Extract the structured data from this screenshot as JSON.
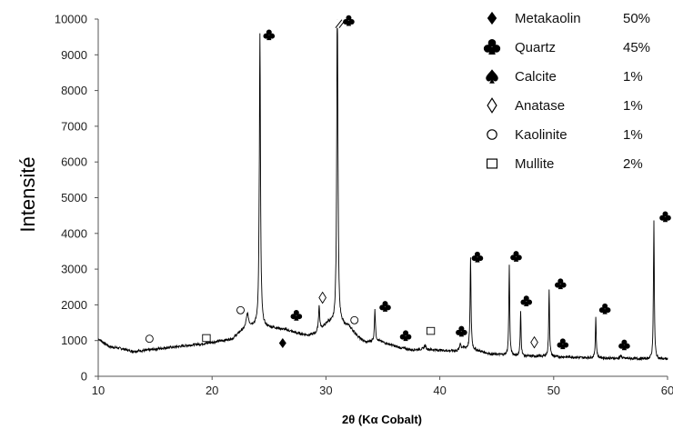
{
  "chart_data": {
    "type": "line",
    "title": "",
    "xlabel": "2θ (Kα Cobalt)",
    "ylabel": "Intensité",
    "xlim": [
      10,
      60
    ],
    "ylim": [
      0,
      10000
    ],
    "xticks": [
      "10",
      "20",
      "30",
      "40",
      "50",
      "60"
    ],
    "yticks": [
      "0",
      "1000",
      "2000",
      "3000",
      "4000",
      "5000",
      "6000",
      "7000",
      "8000",
      "9000",
      "10000"
    ],
    "grid": false,
    "legend_position": "top-right",
    "axis_break": {
      "x": 31,
      "y": 9880
    },
    "baseline": [
      [
        10,
        1050
      ],
      [
        11,
        830
      ],
      [
        12,
        780
      ],
      [
        13,
        700
      ],
      [
        14,
        720
      ],
      [
        15,
        760
      ],
      [
        16,
        800
      ],
      [
        17,
        830
      ],
      [
        18,
        870
      ],
      [
        19,
        900
      ],
      [
        20,
        950
      ],
      [
        21,
        1000
      ],
      [
        21.8,
        1050
      ],
      [
        22.5,
        1250
      ],
      [
        23.5,
        1400
      ],
      [
        25.5,
        1350
      ],
      [
        26.5,
        1300
      ],
      [
        27.5,
        1200
      ],
      [
        28.5,
        1150
      ],
      [
        29,
        1180
      ],
      [
        29.5,
        1300
      ],
      [
        30.2,
        1500
      ],
      [
        32,
        1400
      ],
      [
        33,
        1050
      ],
      [
        33.5,
        950
      ],
      [
        34.5,
        1000
      ],
      [
        35.5,
        900
      ],
      [
        36.5,
        800
      ],
      [
        37.5,
        740
      ],
      [
        38.5,
        760
      ],
      [
        39.5,
        740
      ],
      [
        40.5,
        720
      ],
      [
        41.5,
        710
      ],
      [
        42,
        800
      ],
      [
        43.5,
        700
      ],
      [
        44.5,
        620
      ],
      [
        45.5,
        600
      ],
      [
        46.5,
        580
      ],
      [
        47.5,
        560
      ],
      [
        48.5,
        560
      ],
      [
        49.5,
        560
      ],
      [
        50.5,
        540
      ],
      [
        51.5,
        540
      ],
      [
        52.5,
        520
      ],
      [
        53.5,
        520
      ],
      [
        54.5,
        510
      ],
      [
        55.5,
        500
      ],
      [
        56.5,
        500
      ],
      [
        57.5,
        490
      ],
      [
        58.5,
        480
      ],
      [
        59.5,
        480
      ],
      [
        60,
        480
      ]
    ],
    "peaks": [
      {
        "x": 23.1,
        "height": 400,
        "width": 0.25
      },
      {
        "x": 24.2,
        "height": 8200,
        "width": 0.12
      },
      {
        "x": 29.4,
        "height": 700,
        "width": 0.12
      },
      {
        "x": 31.0,
        "height": 9500,
        "width": 0.12
      },
      {
        "x": 34.3,
        "height": 900,
        "width": 0.1
      },
      {
        "x": 38.7,
        "height": 120,
        "width": 0.15
      },
      {
        "x": 41.8,
        "height": 180,
        "width": 0.1
      },
      {
        "x": 42.7,
        "height": 2550,
        "width": 0.1
      },
      {
        "x": 46.1,
        "height": 2550,
        "width": 0.09
      },
      {
        "x": 47.1,
        "height": 1250,
        "width": 0.09
      },
      {
        "x": 49.6,
        "height": 1900,
        "width": 0.09
      },
      {
        "x": 53.7,
        "height": 1150,
        "width": 0.09
      },
      {
        "x": 55.9,
        "height": 80,
        "width": 0.15
      },
      {
        "x": 58.8,
        "height": 3850,
        "width": 0.09
      }
    ],
    "markers": [
      {
        "phase": "quartz",
        "x": 25.0,
        "y": 9550
      },
      {
        "phase": "quartz",
        "x": 32.0,
        "y": 9950
      },
      {
        "phase": "quartz",
        "x": 27.4,
        "y": 1700
      },
      {
        "phase": "quartz",
        "x": 35.2,
        "y": 1950
      },
      {
        "phase": "quartz",
        "x": 37.0,
        "y": 1130
      },
      {
        "phase": "quartz",
        "x": 41.9,
        "y": 1250
      },
      {
        "phase": "quartz",
        "x": 43.3,
        "y": 3330
      },
      {
        "phase": "quartz",
        "x": 46.7,
        "y": 3350
      },
      {
        "phase": "quartz",
        "x": 47.6,
        "y": 2100
      },
      {
        "phase": "quartz",
        "x": 50.6,
        "y": 2580
      },
      {
        "phase": "quartz",
        "x": 50.8,
        "y": 900
      },
      {
        "phase": "quartz",
        "x": 54.5,
        "y": 1880
      },
      {
        "phase": "quartz",
        "x": 56.2,
        "y": 870
      },
      {
        "phase": "quartz",
        "x": 59.8,
        "y": 4460
      },
      {
        "phase": "metakaolin",
        "x": 26.2,
        "y": 930
      },
      {
        "phase": "anatase",
        "x": 29.7,
        "y": 2200
      },
      {
        "phase": "anatase",
        "x": 48.3,
        "y": 950
      },
      {
        "phase": "kaolinite",
        "x": 14.5,
        "y": 1050
      },
      {
        "phase": "kaolinite",
        "x": 22.5,
        "y": 1850
      },
      {
        "phase": "kaolinite",
        "x": 32.5,
        "y": 1570
      },
      {
        "phase": "mullite",
        "x": 19.5,
        "y": 1070
      },
      {
        "phase": "mullite",
        "x": 39.2,
        "y": 1270
      }
    ],
    "series": [
      {
        "name": "Metakaolin",
        "percent": "50%",
        "symbol": "filled-diamond"
      },
      {
        "name": "Quartz",
        "percent": "45%",
        "symbol": "club"
      },
      {
        "name": "Calcite",
        "percent": "1%",
        "symbol": "spade"
      },
      {
        "name": "Anatase",
        "percent": "1%",
        "symbol": "open-diamond"
      },
      {
        "name": "Kaolinite",
        "percent": "1%",
        "symbol": "open-circle"
      },
      {
        "name": "Mullite",
        "percent": "2%",
        "symbol": "open-square"
      }
    ],
    "colors": {
      "line": "#000000",
      "axis": "#555555"
    }
  }
}
